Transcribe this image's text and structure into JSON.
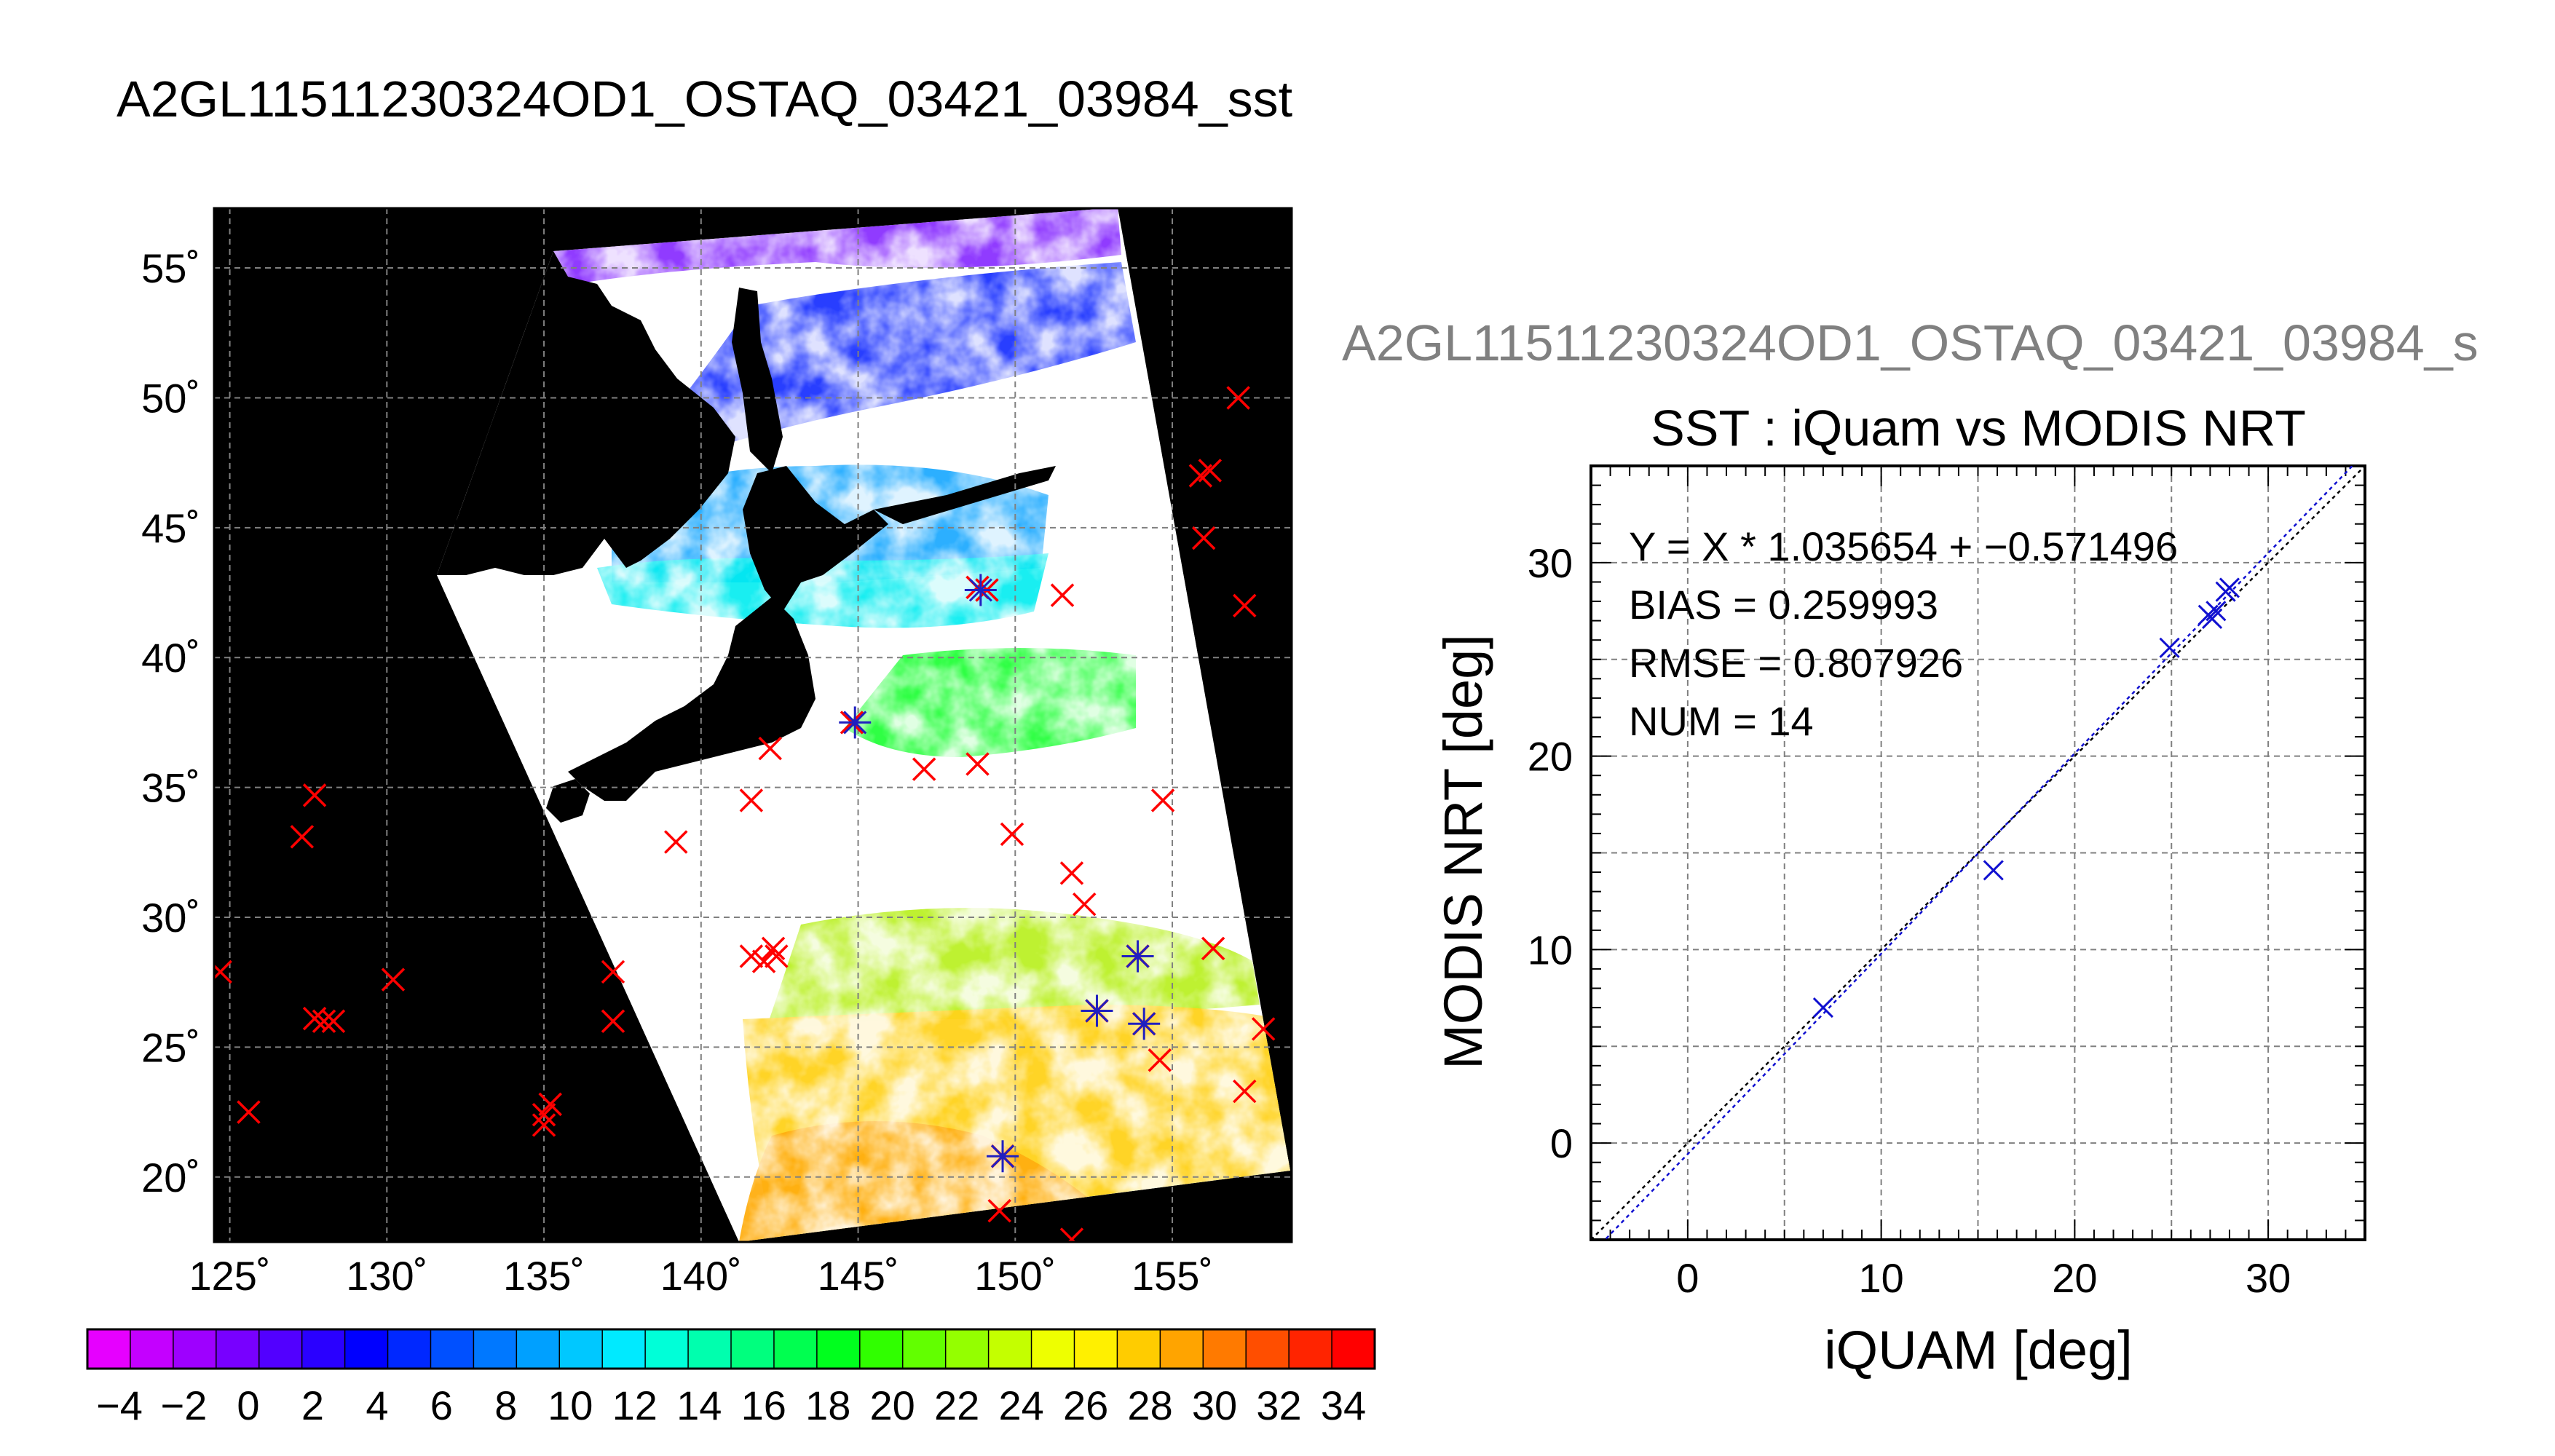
{
  "map": {
    "title": "A2GL11511230324OD1_OSTAQ_03421_03984_sst",
    "lon_ticks": [
      125,
      130,
      135,
      140,
      145,
      150,
      155
    ],
    "lat_ticks": [
      55,
      50,
      45,
      40,
      35,
      30,
      25,
      20
    ],
    "degree_symbol": "˚",
    "lon_range": [
      124.5,
      158.8
    ],
    "lat_range": [
      17.5,
      57.3
    ],
    "colorbar": {
      "tick_labels": [
        "−4",
        "−2",
        "0",
        "2",
        "4",
        "6",
        "8",
        "10",
        "12",
        "14",
        "16",
        "18",
        "20",
        "22",
        "24",
        "26",
        "28",
        "30",
        "32",
        "34"
      ],
      "colors": [
        "#e600ff",
        "#c400ff",
        "#9e00ff",
        "#7800ff",
        "#5200ff",
        "#2a00ff",
        "#0000ff",
        "#0028ff",
        "#0050ff",
        "#0078ff",
        "#00a0ff",
        "#00c8ff",
        "#00eaff",
        "#00ffd8",
        "#00ffae",
        "#00ff7e",
        "#00ff50",
        "#00ff1e",
        "#30ff00",
        "#62ff00",
        "#94ff00",
        "#c4ff00",
        "#eeff00",
        "#fff000",
        "#ffcc00",
        "#ffa400",
        "#ff7a00",
        "#ff4e00",
        "#ff2400",
        "#ff0000"
      ]
    },
    "colors": {
      "marker_red": "#ff0000",
      "marker_blue": "#2020c0",
      "land": "#000000",
      "cloud": "#ffffff"
    },
    "red_markers": [
      [
        124.7,
        27.9
      ],
      [
        127.3,
        33.1
      ],
      [
        127.7,
        34.7
      ],
      [
        127.7,
        26.1
      ],
      [
        128.0,
        26.0
      ],
      [
        128.3,
        26.0
      ],
      [
        125.6,
        22.5
      ],
      [
        130.2,
        27.6
      ],
      [
        135.0,
        22.4
      ],
      [
        135.0,
        22.0
      ],
      [
        135.2,
        22.8
      ],
      [
        137.2,
        27.9
      ],
      [
        137.2,
        26.0
      ],
      [
        139.2,
        32.9
      ],
      [
        141.6,
        34.5
      ],
      [
        141.6,
        28.5
      ],
      [
        142.0,
        28.3
      ],
      [
        142.3,
        28.8
      ],
      [
        142.4,
        28.5
      ],
      [
        142.2,
        36.5
      ],
      [
        144.8,
        37.5
      ],
      [
        147.1,
        35.7
      ],
      [
        148.8,
        35.9
      ],
      [
        148.8,
        42.7
      ],
      [
        149.1,
        42.6
      ],
      [
        151.5,
        42.4
      ],
      [
        149.9,
        33.2
      ],
      [
        151.8,
        31.7
      ],
      [
        152.2,
        30.5
      ],
      [
        152.6,
        26.4
      ],
      [
        153.9,
        28.5
      ],
      [
        154.1,
        25.9
      ],
      [
        154.6,
        24.5
      ],
      [
        154.7,
        34.5
      ],
      [
        156.3,
        28.8
      ],
      [
        155.9,
        47.0
      ],
      [
        156.2,
        47.2
      ],
      [
        156.0,
        44.6
      ],
      [
        157.1,
        50.0
      ],
      [
        157.3,
        42.0
      ],
      [
        157.3,
        23.3
      ],
      [
        157.9,
        25.7
      ],
      [
        149.6,
        20.8
      ],
      [
        149.5,
        18.7
      ],
      [
        151.8,
        17.6
      ]
    ],
    "blue_markers": [
      [
        148.9,
        42.6
      ],
      [
        144.9,
        37.5
      ],
      [
        152.6,
        26.4
      ],
      [
        153.9,
        28.5
      ],
      [
        154.1,
        25.9
      ],
      [
        149.6,
        20.8
      ]
    ]
  },
  "scatter": {
    "top_label": "A2GL11511230324OD1_OSTAQ_03421_03984_s",
    "title": "SST : iQuam vs MODIS NRT",
    "xlabel": "iQUAM [deg]",
    "ylabel": "MODIS NRT [deg]",
    "x_ticks": [
      "0",
      "10",
      "20",
      "30"
    ],
    "y_ticks": [
      "0",
      "10",
      "20",
      "30"
    ],
    "stats": [
      "Y = X * 1.035654 + −0.571496",
      "BIAS = 0.259993",
      "RMSE = 0.807926",
      "NUM = 14"
    ],
    "colors": {
      "points": "#1010d0",
      "fit_line": "#1010d0",
      "identity_line": "#000000"
    }
  },
  "chart_data": [
    {
      "type": "scatter",
      "title": "SST : iQuam vs MODIS NRT",
      "xlabel": "iQUAM [deg]",
      "ylabel": "MODIS NRT [deg]",
      "xlim": [
        -5,
        35
      ],
      "ylim": [
        -5,
        35
      ],
      "grid": true,
      "points": [
        {
          "x": 7.0,
          "y": 7.0
        },
        {
          "x": 15.8,
          "y": 14.1
        },
        {
          "x": 24.9,
          "y": 25.6
        },
        {
          "x": 26.9,
          "y": 27.3
        },
        {
          "x": 27.1,
          "y": 27.1
        },
        {
          "x": 27.3,
          "y": 27.5
        },
        {
          "x": 27.8,
          "y": 28.5
        },
        {
          "x": 28.0,
          "y": 28.7
        }
      ],
      "fit": {
        "slope": 1.035654,
        "intercept": -0.571496
      },
      "identity_line": true,
      "annotations": [
        "Y = X * 1.035654 + −0.571496",
        "BIAS = 0.259993",
        "RMSE = 0.807926",
        "NUM = 14"
      ]
    },
    {
      "type": "heatmap",
      "title": "A2GL11511230324OD1_OSTAQ_03421_03984_sst",
      "x_ticks": [
        "125˚",
        "130˚",
        "135˚",
        "140˚",
        "145˚",
        "150˚",
        "155˚"
      ],
      "y_ticks": [
        "55˚",
        "50˚",
        "45˚",
        "40˚",
        "35˚",
        "30˚",
        "25˚",
        "20˚"
      ],
      "colorbar_range": [
        -5,
        35
      ]
    }
  ]
}
